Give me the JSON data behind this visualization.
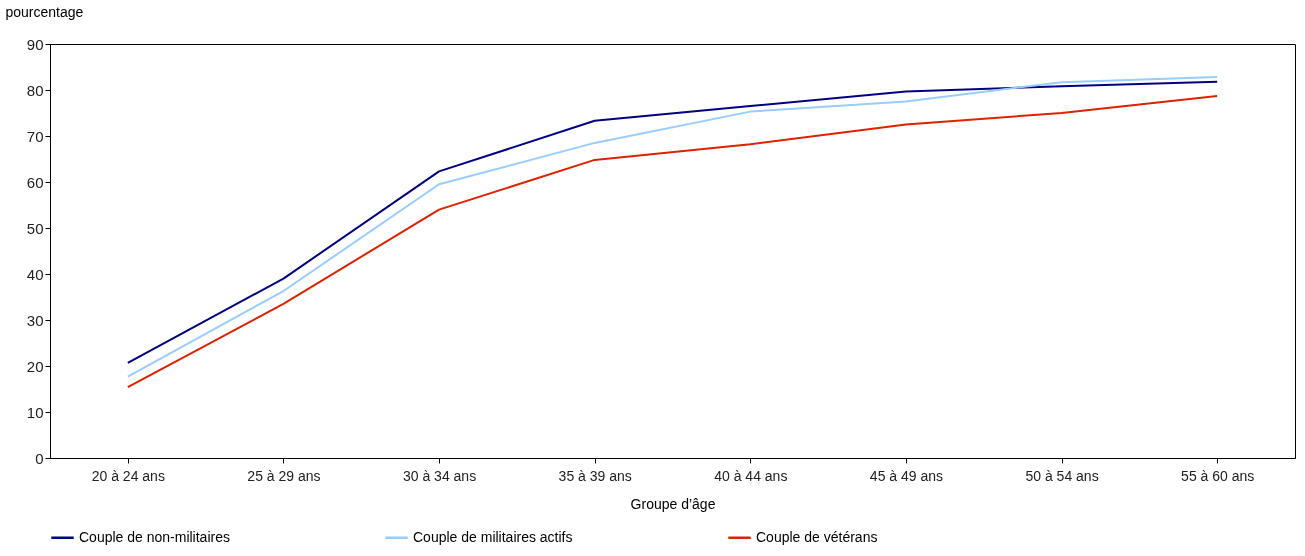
{
  "chart_data": {
    "type": "line",
    "ylabel": "pourcentage",
    "xlabel": "Groupe d’âge",
    "categories": [
      "20 à 24 ans",
      "25 à 29 ans",
      "30 à 34 ans",
      "35 à 39 ans",
      "40 à 44 ans",
      "45 à 49 ans",
      "50 à 54 ans",
      "55 à 60 ans"
    ],
    "series": [
      {
        "name": "Couple de non-militaires",
        "color": "#000080",
        "values": [
          20.7,
          39.0,
          62.3,
          73.3,
          76.5,
          79.7,
          80.8,
          81.8
        ]
      },
      {
        "name": "Couple de militaires actifs",
        "color": "#99ccff",
        "values": [
          17.7,
          36.3,
          59.5,
          68.5,
          75.3,
          77.5,
          81.7,
          82.8
        ]
      },
      {
        "name": "Couple de vétérans",
        "color": "#dd2200",
        "values": [
          15.4,
          33.5,
          54.0,
          64.8,
          68.2,
          72.5,
          75.0,
          78.7
        ]
      }
    ],
    "ylim": [
      0,
      90
    ],
    "yticks": [
      0,
      10,
      20,
      30,
      40,
      50,
      60,
      70,
      80,
      90
    ],
    "grid": false,
    "legend": "bottom",
    "marker": "none",
    "line_style": "solid"
  }
}
